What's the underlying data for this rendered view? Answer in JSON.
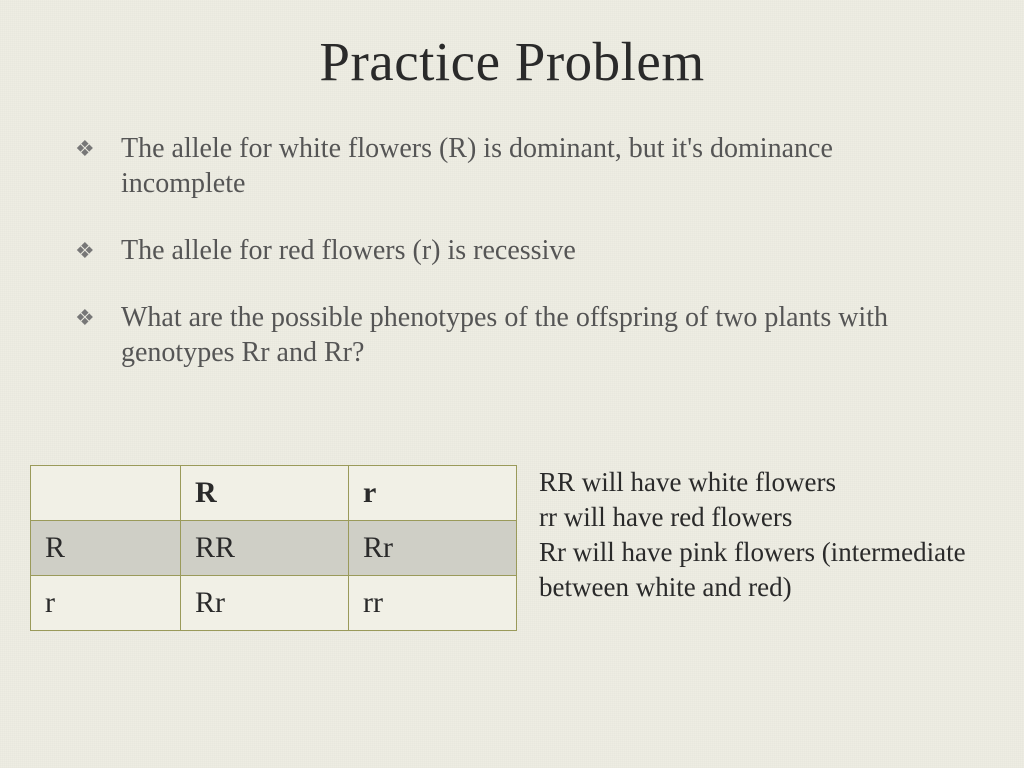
{
  "title": "Practice Problem",
  "bullets": [
    "The allele for white flowers (R) is dominant, but it's dominance incomplete",
    "The allele for red flowers (r) is recessive",
    "What are the possible phenotypes of the offspring of two plants with genotypes Rr and Rr?"
  ],
  "bullet_marker": "❖",
  "punnett": {
    "col_headers": [
      "",
      "R",
      "r"
    ],
    "rows": [
      [
        "R",
        "RR",
        "Rr"
      ],
      [
        "r",
        "Rr",
        "rr"
      ]
    ],
    "border_color": "#9a9a5a",
    "light_bg": "#f1f0e6",
    "dark_bg": "#cfcfc6"
  },
  "answers": [
    "RR will have white flowers",
    "rr will have red flowers",
    "Rr will have pink flowers (intermediate between white and red)"
  ]
}
